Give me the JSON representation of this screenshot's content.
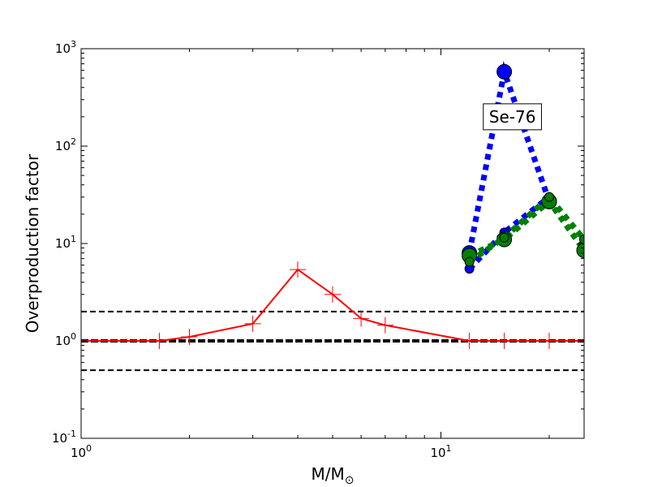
{
  "chart_data": {
    "type": "line",
    "title": "",
    "xlabel": {
      "main": "M/M",
      "sub": "⊙"
    },
    "ylabel": "Overproduction factor",
    "xscale": "log",
    "yscale": "log",
    "xlim": [
      1,
      25
    ],
    "ylim": [
      0.1,
      1000
    ],
    "grid": false,
    "x_ticks": [
      {
        "value": 1,
        "base": "10",
        "exp": "0"
      },
      {
        "value": 10,
        "base": "10",
        "exp": "1"
      }
    ],
    "y_ticks": [
      {
        "value": 0.1,
        "base": "10",
        "exp": "-1"
      },
      {
        "value": 1,
        "base": "10",
        "exp": "0"
      },
      {
        "value": 10,
        "base": "10",
        "exp": "1"
      },
      {
        "value": 100,
        "base": "10",
        "exp": "2"
      },
      {
        "value": 1000,
        "base": "10",
        "exp": "3"
      }
    ],
    "reference_lines": [
      {
        "y": 2,
        "style": "dashed",
        "color": "#000000"
      },
      {
        "y": 1,
        "style": "dashed-thick",
        "color": "#000000"
      },
      {
        "y": 0.5,
        "style": "dashed",
        "color": "#000000"
      }
    ],
    "series": [
      {
        "color": "#ff0000",
        "line": "solid",
        "marker": "plus",
        "x": [
          1,
          1.65,
          2,
          3,
          4,
          5,
          6,
          7,
          12,
          15,
          20,
          25
        ],
        "y": [
          1,
          1,
          1.1,
          1.5,
          5.4,
          3.0,
          1.7,
          1.45,
          1.0,
          1.0,
          1.0,
          1.0
        ]
      },
      {
        "color": "#0000ff",
        "line": "dotted-thick",
        "marker": "circle",
        "x": [
          12,
          15,
          20
        ],
        "y": [
          8,
          580,
          27
        ]
      },
      {
        "color": "#0000ff",
        "line": "dotted-thick",
        "marker": "circle-small",
        "x": [
          12,
          15,
          20
        ],
        "y": [
          5.5,
          13,
          30
        ]
      },
      {
        "color": "#008000",
        "line": "dotted-thick",
        "marker": "circle",
        "x": [
          12,
          15,
          20,
          25
        ],
        "y": [
          7.5,
          11,
          27,
          8.5
        ]
      },
      {
        "color": "#008000",
        "line": "dotted-thick",
        "marker": "circle-small",
        "x": [
          12,
          15,
          20,
          25
        ],
        "y": [
          6.5,
          11.5,
          30,
          11
        ]
      }
    ],
    "annotations": [
      {
        "text": "Se-76",
        "x": 15.8,
        "y": 200,
        "boxed": true
      }
    ]
  }
}
